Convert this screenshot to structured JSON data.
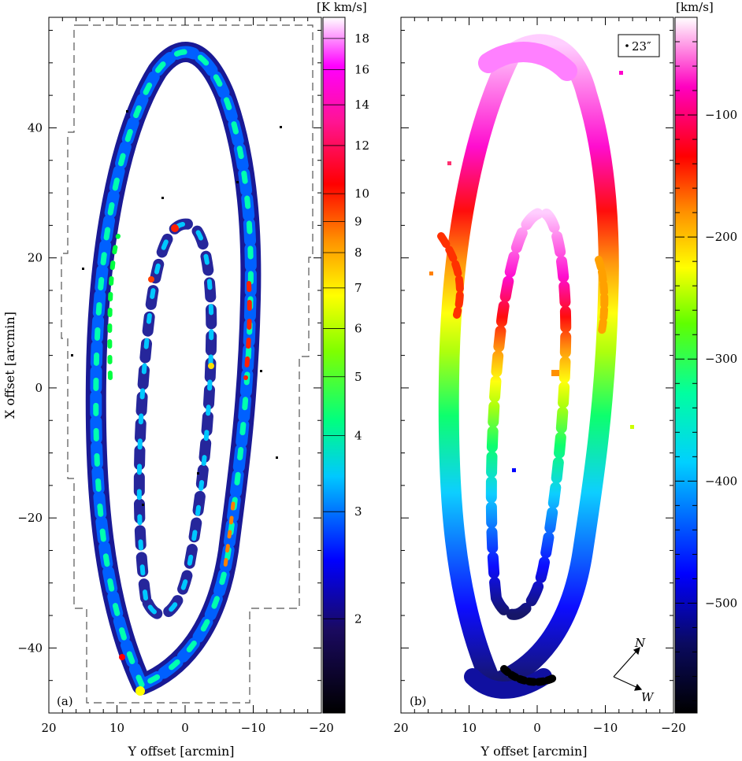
{
  "chart_data": [
    {
      "type": "heatmap",
      "panel_label": "(a)",
      "xlabel": "Y offset [arcmin]",
      "ylabel": "X offset [arcmin]",
      "xlim": [
        20,
        -20
      ],
      "ylim": [
        -50,
        57
      ],
      "x_ticks": [
        "20",
        "10",
        "0",
        "−10",
        "−20"
      ],
      "y_ticks": [
        "40",
        "20",
        "0",
        "−20",
        "−40"
      ],
      "colorbar": {
        "title": "[K km/s]",
        "scale": "log",
        "range": [
          1.4,
          19.5
        ],
        "ticks": [
          "2",
          "3",
          "4",
          "5",
          "6",
          "7",
          "8",
          "9",
          "10",
          "12",
          "14",
          "16",
          "18"
        ]
      }
    },
    {
      "type": "heatmap",
      "panel_label": "(b)",
      "xlabel": "Y offset [arcmin]",
      "xlim": [
        20,
        -20
      ],
      "ylim": [
        -50,
        57
      ],
      "x_ticks": [
        "20",
        "10",
        "0",
        "−10",
        "−20"
      ],
      "beam_label": "23″",
      "compass": {
        "north": "N",
        "west": "W"
      },
      "colorbar": {
        "title": "[km/s]",
        "scale": "linear",
        "range": [
          -590,
          -20
        ],
        "ticks": [
          "−100",
          "−200",
          "−300",
          "−400",
          "−500"
        ]
      }
    }
  ],
  "colors": {
    "colormap": [
      "#000000",
      "#1a0a60",
      "#0000ff",
      "#00ffff",
      "#00ff00",
      "#ffff00",
      "#ff8000",
      "#ff0000",
      "#ff1493",
      "#ff00ff",
      "#ffffff"
    ]
  }
}
